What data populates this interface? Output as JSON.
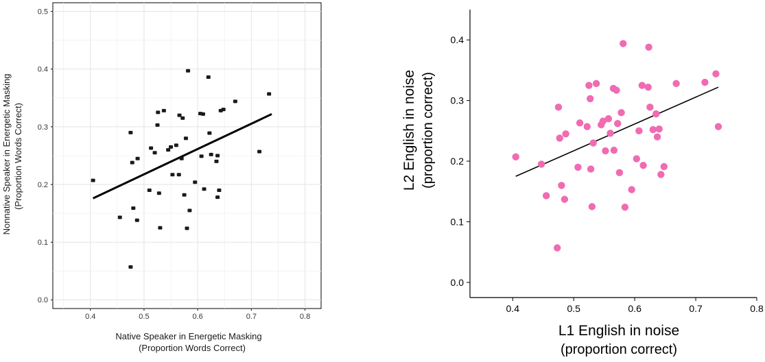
{
  "chart_data": [
    {
      "type": "scatter",
      "xlabel": [
        "Native Speaker in Energetic Masking",
        "(Proportion Words Correct)"
      ],
      "ylabel": [
        "Nonnative Speaker in Energetic Masking",
        "(Proportion Words Correct)"
      ],
      "xlim": [
        0.33,
        0.83
      ],
      "ylim": [
        -0.015,
        0.515
      ],
      "xticks": [
        0.4,
        0.5,
        0.6,
        0.7,
        0.8
      ],
      "xtick_labels": [
        "0.4",
        "0.5",
        "0.6",
        "0.7",
        "0.8"
      ],
      "yticks": [
        0.0,
        0.1,
        0.2,
        0.3,
        0.4,
        0.5
      ],
      "ytick_labels": [
        "0.0",
        "0.1",
        "0.2",
        "0.3",
        "0.4",
        "0.5"
      ],
      "grid": true,
      "point_color": "#1a1a1a",
      "x": [
        0.405,
        0.455,
        0.475,
        0.475,
        0.478,
        0.48,
        0.487,
        0.488,
        0.51,
        0.513,
        0.52,
        0.525,
        0.526,
        0.528,
        0.53,
        0.537,
        0.545,
        0.55,
        0.553,
        0.56,
        0.565,
        0.566,
        0.57,
        0.572,
        0.575,
        0.578,
        0.58,
        0.582,
        0.585,
        0.595,
        0.605,
        0.607,
        0.61,
        0.612,
        0.62,
        0.622,
        0.625,
        0.635,
        0.637,
        0.637,
        0.64,
        0.643,
        0.648,
        0.67,
        0.715,
        0.733
      ],
      "y": [
        0.207,
        0.143,
        0.057,
        0.29,
        0.238,
        0.159,
        0.138,
        0.245,
        0.19,
        0.263,
        0.255,
        0.303,
        0.325,
        0.185,
        0.125,
        0.328,
        0.26,
        0.265,
        0.217,
        0.268,
        0.217,
        0.32,
        0.245,
        0.315,
        0.182,
        0.28,
        0.124,
        0.397,
        0.155,
        0.204,
        0.323,
        0.249,
        0.322,
        0.192,
        0.386,
        0.289,
        0.252,
        0.24,
        0.25,
        0.178,
        0.19,
        0.328,
        0.33,
        0.344,
        0.257,
        0.357
      ],
      "fit_line": {
        "x": [
          0.405,
          0.738
        ],
        "y": [
          0.176,
          0.322
        ]
      }
    },
    {
      "type": "scatter",
      "xlabel": [
        "L1 English in noise",
        "(proportion correct)"
      ],
      "ylabel": [
        "L2 English in noise",
        "(proportion correct)"
      ],
      "xlim": [
        0.33,
        0.8
      ],
      "ylim": [
        -0.025,
        0.45
      ],
      "xticks": [
        0.4,
        0.5,
        0.6,
        0.7,
        0.8
      ],
      "xtick_labels": [
        "0.4",
        "0.5",
        "0.6",
        "0.7",
        "0.8"
      ],
      "yticks": [
        0.0,
        0.1,
        0.2,
        0.3,
        0.4
      ],
      "ytick_labels": [
        "0.0",
        "0.1",
        "0.2",
        "0.3",
        "0.4"
      ],
      "grid": false,
      "point_color": "#f06bb2",
      "x": [
        0.405,
        0.447,
        0.455,
        0.473,
        0.475,
        0.477,
        0.48,
        0.485,
        0.487,
        0.507,
        0.51,
        0.522,
        0.525,
        0.527,
        0.528,
        0.53,
        0.532,
        0.537,
        0.545,
        0.548,
        0.552,
        0.557,
        0.56,
        0.565,
        0.566,
        0.57,
        0.572,
        0.575,
        0.578,
        0.581,
        0.584,
        0.595,
        0.603,
        0.607,
        0.612,
        0.614,
        0.622,
        0.623,
        0.625,
        0.63,
        0.635,
        0.637,
        0.64,
        0.643,
        0.648,
        0.668,
        0.715,
        0.733,
        0.737
      ],
      "y": [
        0.207,
        0.195,
        0.143,
        0.057,
        0.289,
        0.238,
        0.16,
        0.137,
        0.245,
        0.19,
        0.263,
        0.257,
        0.325,
        0.303,
        0.187,
        0.125,
        0.23,
        0.328,
        0.26,
        0.266,
        0.217,
        0.27,
        0.246,
        0.32,
        0.218,
        0.317,
        0.262,
        0.181,
        0.28,
        0.394,
        0.124,
        0.153,
        0.204,
        0.25,
        0.325,
        0.193,
        0.322,
        0.388,
        0.289,
        0.252,
        0.278,
        0.24,
        0.253,
        0.178,
        0.191,
        0.328,
        0.33,
        0.344,
        0.257
      ],
      "fit_line": {
        "x": [
          0.405,
          0.737
        ],
        "y": [
          0.175,
          0.322
        ]
      }
    }
  ]
}
